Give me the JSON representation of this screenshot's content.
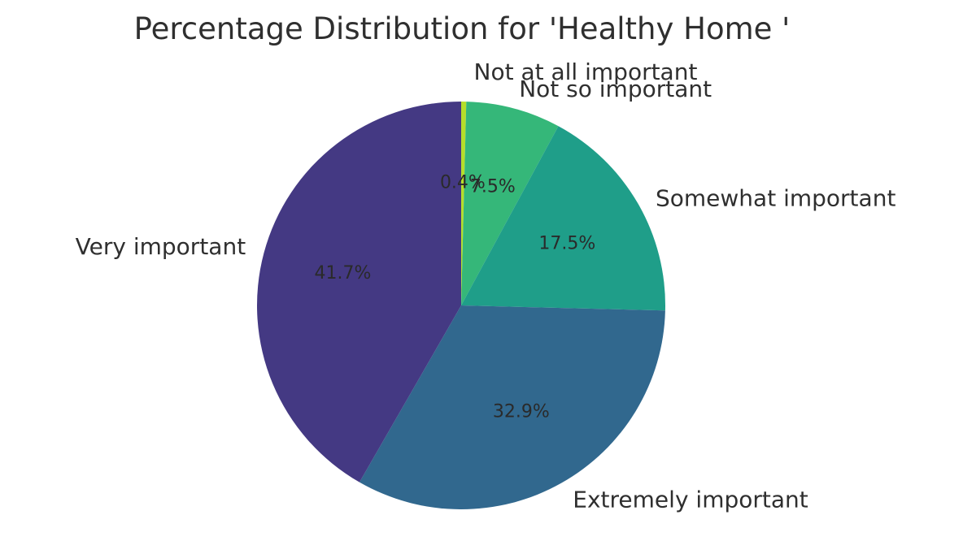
{
  "chart_data": {
    "type": "pie",
    "title": "Percentage Distribution for 'Healthy Home '",
    "start_angle_deg": 90,
    "direction": "clockwise",
    "slices": [
      {
        "label": "Not at all important",
        "value": 0.4,
        "pct_label": "0.4%",
        "color": "#b5de2b"
      },
      {
        "label": "Not so important",
        "value": 7.5,
        "pct_label": "7.5%",
        "color": "#35b779"
      },
      {
        "label": "Somewhat important",
        "value": 17.5,
        "pct_label": "17.5%",
        "color": "#1f9e89"
      },
      {
        "label": "Extremely important",
        "value": 32.9,
        "pct_label": "32.9%",
        "color": "#31688e"
      },
      {
        "label": "Very important",
        "value": 41.7,
        "pct_label": "41.7%",
        "color": "#443983"
      }
    ]
  }
}
